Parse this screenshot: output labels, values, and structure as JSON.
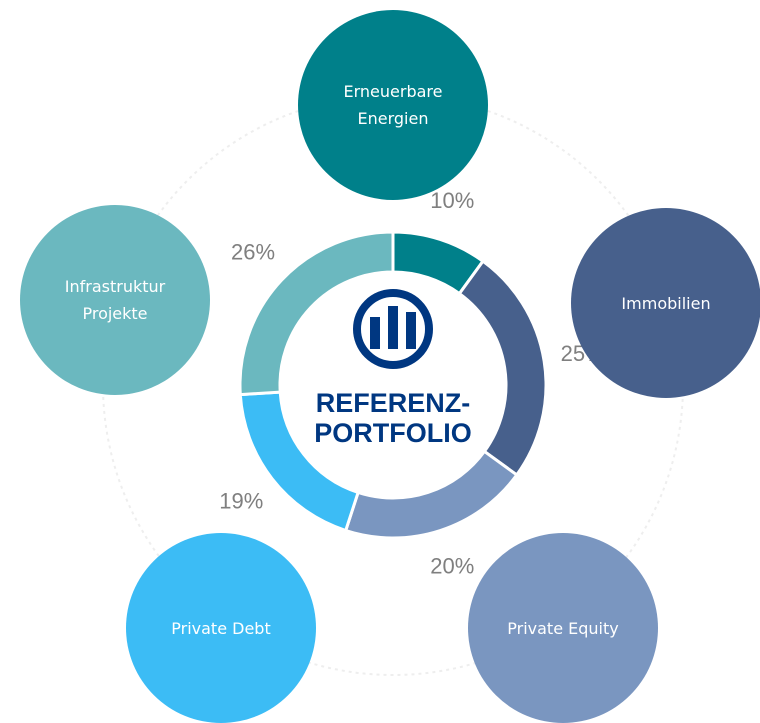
{
  "chart_data": {
    "type": "donut",
    "center_title": "REFERENZ-PORTFOLIO",
    "categories": [
      "Erneuerbare Energien",
      "Immobilien",
      "Private Equity",
      "Private Debt",
      "Infrastruktur Projekte"
    ],
    "values": [
      10,
      25,
      20,
      19,
      26
    ],
    "value_labels": [
      "10%",
      "25%",
      "20%",
      "19%",
      "26%"
    ],
    "colors": [
      "#00808a",
      "#47608c",
      "#7a96c0",
      "#3cbcf5",
      "#6bb8bf"
    ]
  }
}
